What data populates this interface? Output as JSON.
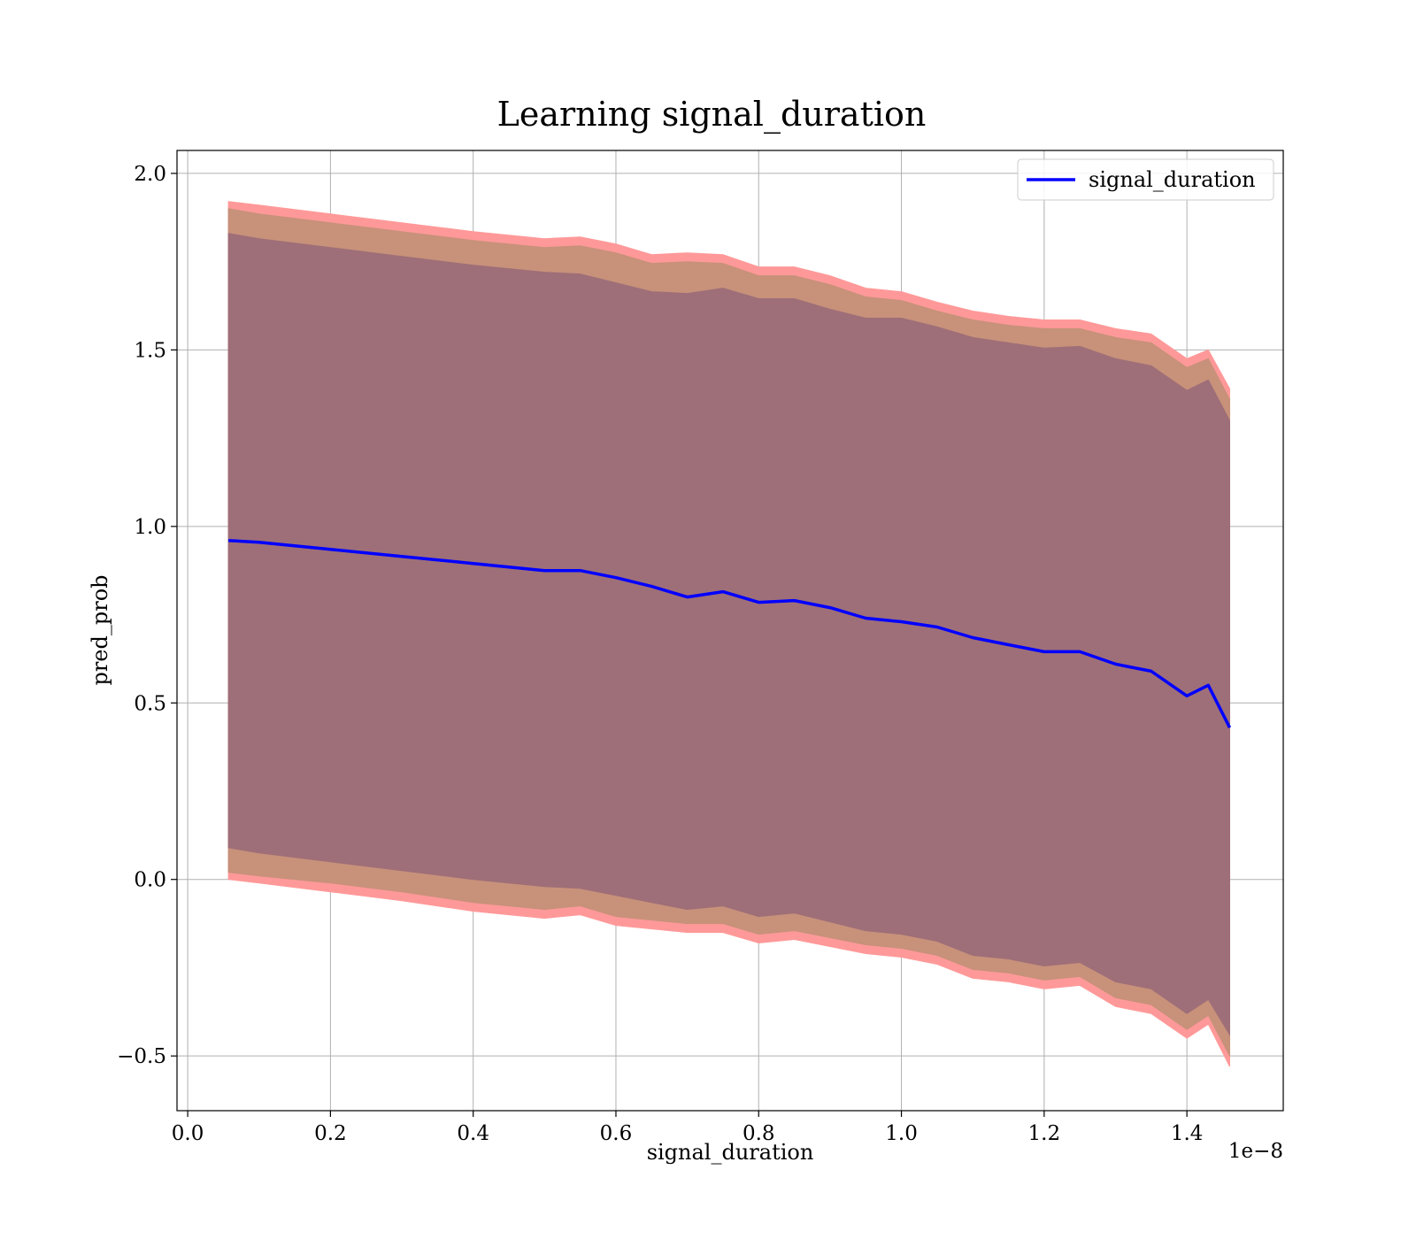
{
  "chart_data": {
    "type": "line",
    "title": "Learning signal_duration",
    "xlabel": "signal_duration",
    "ylabel": "pred_prob",
    "x_offset_text": "1e−8",
    "xlim": [
      -0.015,
      1.535
    ],
    "ylim": [
      -0.655,
      2.065
    ],
    "xticks": [
      0.0,
      0.2,
      0.4,
      0.6,
      0.8,
      1.0,
      1.2,
      1.4
    ],
    "xtick_labels": [
      "0.0",
      "0.2",
      "0.4",
      "0.6",
      "0.8",
      "1.0",
      "1.2",
      "1.4"
    ],
    "yticks": [
      -0.5,
      0.0,
      0.5,
      1.0,
      1.5,
      2.0
    ],
    "ytick_labels": [
      "−0.5",
      "0.0",
      "0.5",
      "1.0",
      "1.5",
      "2.0"
    ],
    "grid": true,
    "legend": {
      "position": "top-right",
      "entries": [
        "signal_duration"
      ]
    },
    "colors": {
      "line": "#0000ff",
      "outer_band": "#ff9999",
      "middle_band": "#c8917a",
      "inner_band": "#9e6f78",
      "grid": "#b0b0b0"
    },
    "x": [
      0.057,
      0.1,
      0.2,
      0.3,
      0.4,
      0.5,
      0.55,
      0.6,
      0.65,
      0.7,
      0.75,
      0.8,
      0.85,
      0.9,
      0.95,
      1.0,
      1.05,
      1.1,
      1.15,
      1.2,
      1.25,
      1.3,
      1.35,
      1.4,
      1.43,
      1.46
    ],
    "series": [
      {
        "name": "signal_duration",
        "values": [
          0.96,
          0.955,
          0.935,
          0.915,
          0.895,
          0.875,
          0.875,
          0.855,
          0.83,
          0.8,
          0.815,
          0.785,
          0.79,
          0.77,
          0.74,
          0.73,
          0.715,
          0.685,
          0.665,
          0.645,
          0.645,
          0.61,
          0.59,
          0.52,
          0.55,
          0.43
        ]
      }
    ],
    "bands": [
      {
        "upper": [
          1.92,
          1.91,
          1.885,
          1.86,
          1.835,
          1.815,
          1.82,
          1.8,
          1.77,
          1.775,
          1.77,
          1.735,
          1.735,
          1.71,
          1.675,
          1.665,
          1.635,
          1.61,
          1.595,
          1.585,
          1.585,
          1.56,
          1.545,
          1.475,
          1.5,
          1.39
        ],
        "lower": [
          0.0,
          -0.01,
          -0.035,
          -0.06,
          -0.09,
          -0.11,
          -0.1,
          -0.13,
          -0.14,
          -0.15,
          -0.15,
          -0.18,
          -0.17,
          -0.19,
          -0.21,
          -0.22,
          -0.24,
          -0.28,
          -0.29,
          -0.31,
          -0.3,
          -0.36,
          -0.38,
          -0.45,
          -0.41,
          -0.53
        ]
      },
      {
        "upper": [
          1.9,
          1.885,
          1.86,
          1.835,
          1.81,
          1.79,
          1.795,
          1.775,
          1.745,
          1.75,
          1.745,
          1.71,
          1.71,
          1.685,
          1.65,
          1.64,
          1.61,
          1.585,
          1.57,
          1.56,
          1.56,
          1.535,
          1.52,
          1.45,
          1.475,
          1.36
        ],
        "lower": [
          0.02,
          0.01,
          -0.01,
          -0.035,
          -0.065,
          -0.085,
          -0.075,
          -0.105,
          -0.115,
          -0.125,
          -0.125,
          -0.155,
          -0.145,
          -0.165,
          -0.185,
          -0.195,
          -0.215,
          -0.255,
          -0.265,
          -0.285,
          -0.275,
          -0.335,
          -0.355,
          -0.425,
          -0.385,
          -0.5
        ]
      },
      {
        "upper": [
          1.83,
          1.815,
          1.79,
          1.765,
          1.74,
          1.72,
          1.715,
          1.69,
          1.665,
          1.66,
          1.675,
          1.645,
          1.645,
          1.615,
          1.59,
          1.59,
          1.565,
          1.535,
          1.52,
          1.505,
          1.51,
          1.475,
          1.455,
          1.385,
          1.415,
          1.3
        ],
        "lower": [
          0.09,
          0.075,
          0.05,
          0.025,
          0.0,
          -0.02,
          -0.025,
          -0.045,
          -0.065,
          -0.085,
          -0.075,
          -0.105,
          -0.095,
          -0.12,
          -0.145,
          -0.155,
          -0.175,
          -0.215,
          -0.225,
          -0.245,
          -0.235,
          -0.29,
          -0.31,
          -0.38,
          -0.34,
          -0.44
        ]
      }
    ]
  }
}
